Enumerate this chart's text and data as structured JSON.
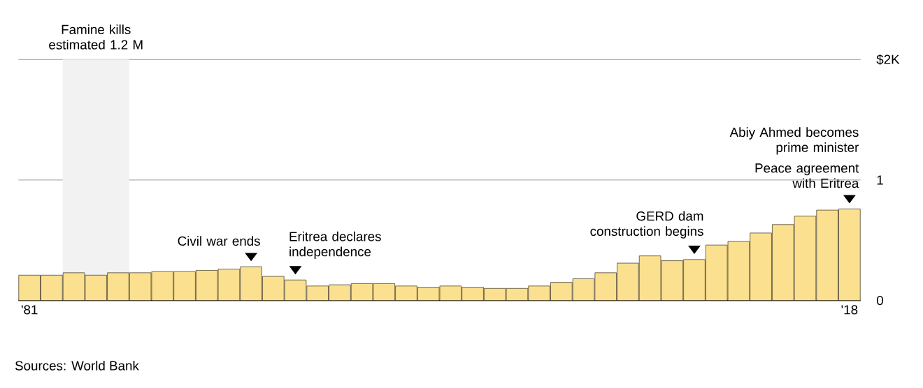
{
  "chart_data": {
    "type": "bar",
    "x": [
      1981,
      1982,
      1983,
      1984,
      1985,
      1986,
      1987,
      1988,
      1989,
      1990,
      1991,
      1992,
      1993,
      1994,
      1995,
      1996,
      1997,
      1998,
      1999,
      2000,
      2001,
      2002,
      2003,
      2004,
      2005,
      2006,
      2007,
      2008,
      2009,
      2010,
      2011,
      2012,
      2013,
      2014,
      2015,
      2016,
      2017,
      2018
    ],
    "values": [
      0.21,
      0.21,
      0.23,
      0.21,
      0.23,
      0.23,
      0.24,
      0.24,
      0.25,
      0.26,
      0.28,
      0.2,
      0.17,
      0.12,
      0.13,
      0.14,
      0.14,
      0.12,
      0.11,
      0.12,
      0.11,
      0.1,
      0.1,
      0.12,
      0.15,
      0.18,
      0.23,
      0.31,
      0.37,
      0.33,
      0.34,
      0.46,
      0.49,
      0.56,
      0.63,
      0.7,
      0.75,
      0.76
    ],
    "color": "#fbe08f",
    "xlim": [
      1980.5,
      2018.5
    ],
    "xticks": [
      {
        "value": 1981,
        "label": "'81"
      },
      {
        "value": 2018,
        "label": "'18"
      }
    ],
    "ylim": [
      0,
      2
    ],
    "yticks": [
      0,
      1,
      {
        "value": 2,
        "label": "$2K"
      }
    ],
    "grid": "y",
    "bands": [
      {
        "axis": "x",
        "from": 1982.5,
        "to": 1985.5,
        "label": "Famine kills estimated 1.2 M",
        "color": "#f2f2f2"
      }
    ],
    "annotations": [
      {
        "text": "Civil war ends",
        "x": 1991,
        "y": 0.28
      },
      {
        "text": "Eritrea declares independence",
        "x": 1993,
        "y": 0.17
      },
      {
        "text": "GERD dam construction begins",
        "x": 2011,
        "y": 0.34
      },
      {
        "text": "Peace agreement with Eritrea",
        "x": 2018,
        "y": 0.76
      },
      "Abiy Ahmed becomes prime minister",
      "Sources: World Bank"
    ]
  }
}
